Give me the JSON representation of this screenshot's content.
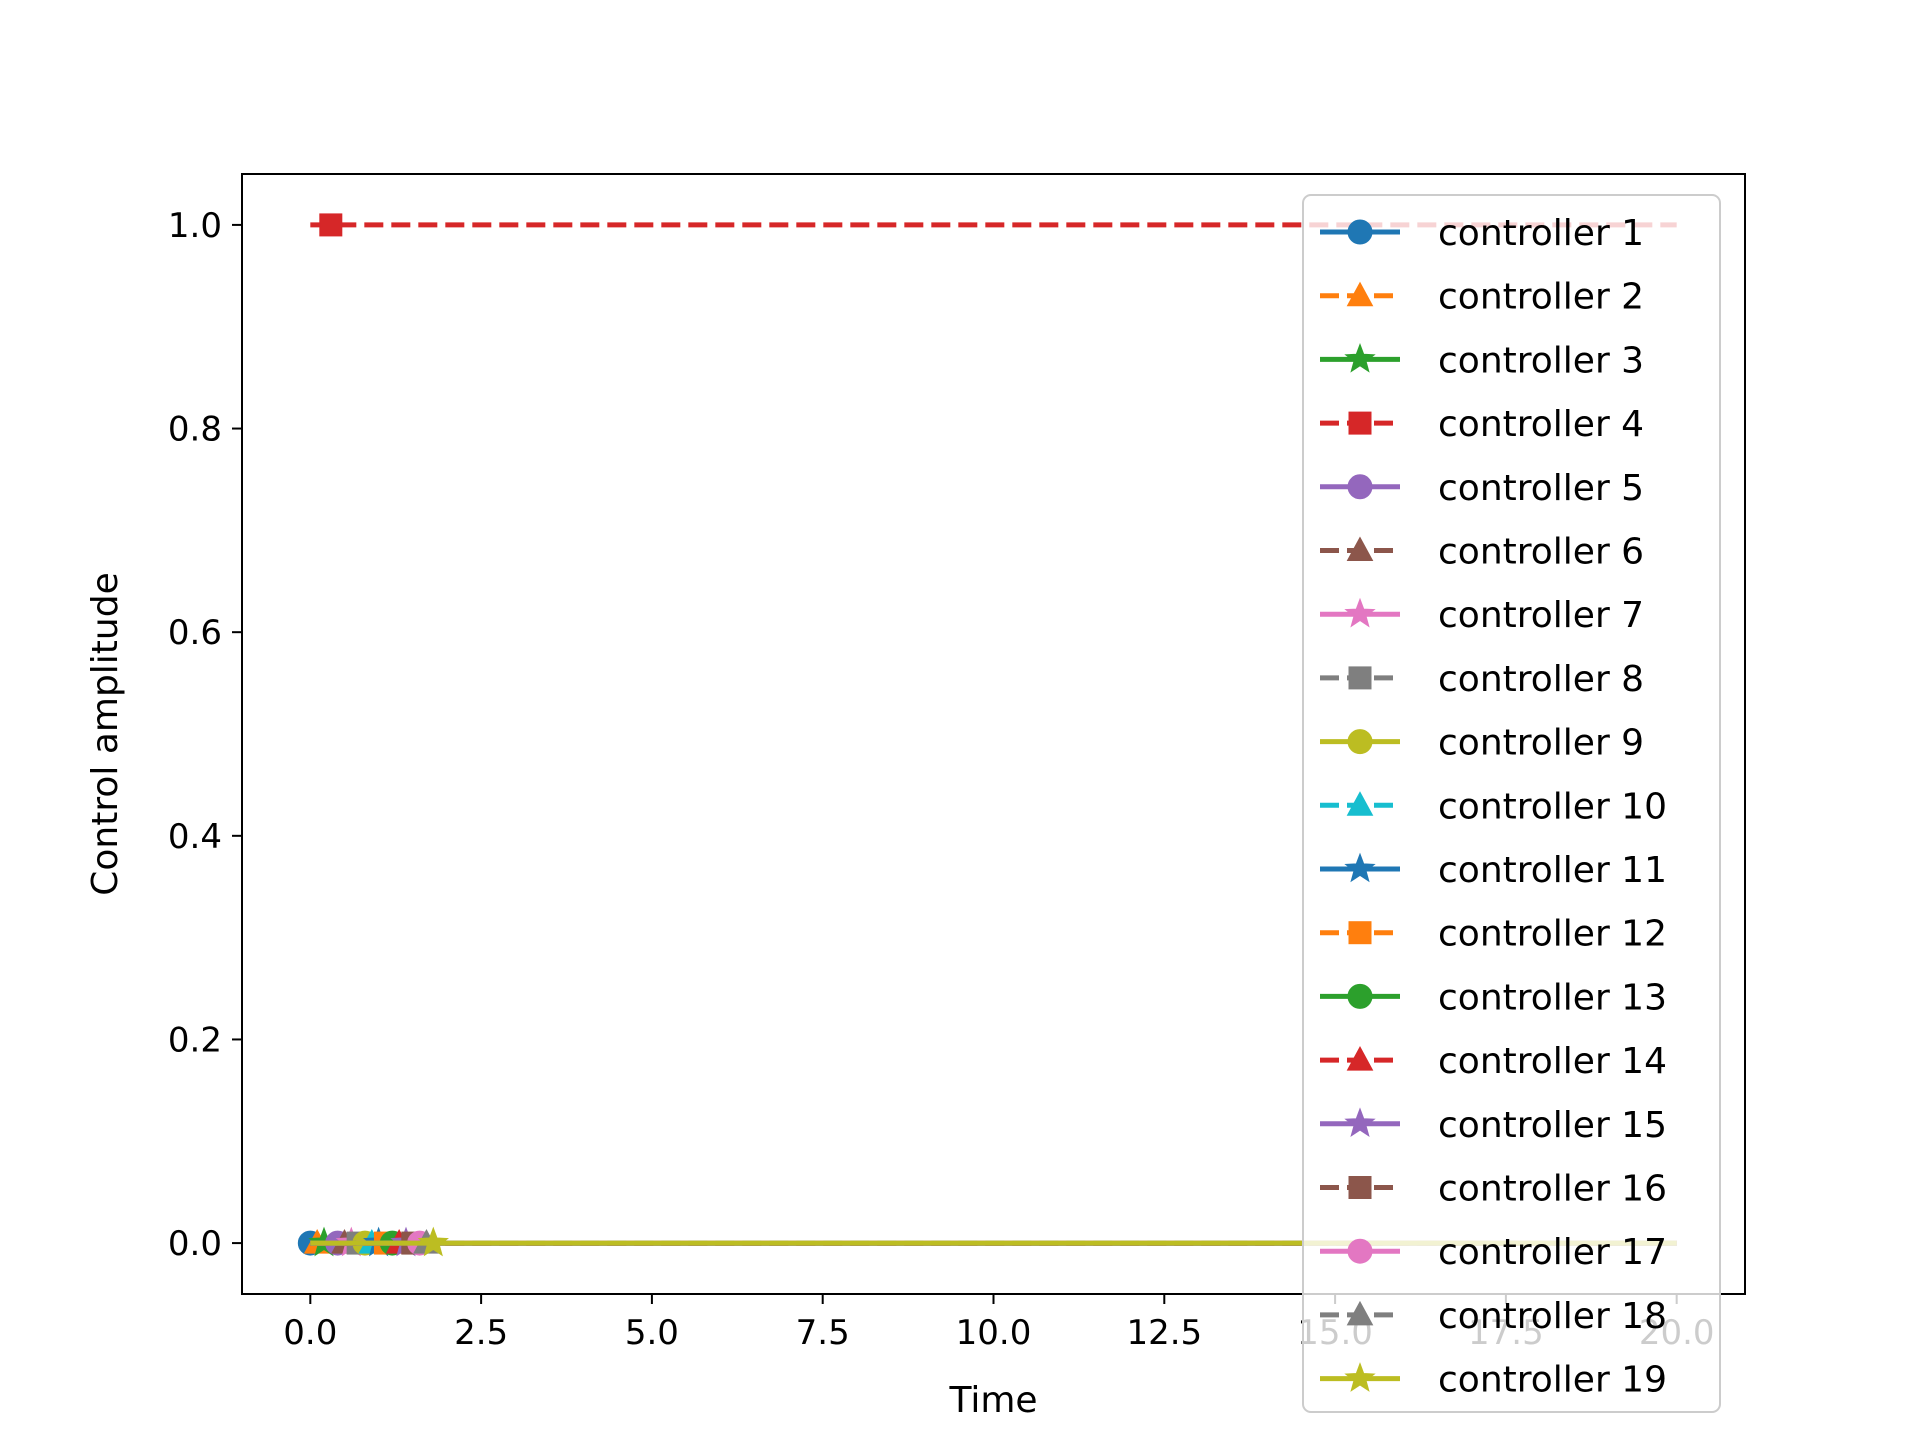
{
  "chart_data": {
    "type": "line",
    "title": "",
    "xlabel": "Time",
    "ylabel": "Control amplitude",
    "xlim": [
      -1.0,
      21.0
    ],
    "ylim": [
      -0.05,
      1.05
    ],
    "xticks": [
      "0.0",
      "2.5",
      "5.0",
      "7.5",
      "10.0",
      "12.5",
      "15.0",
      "17.5",
      "20.0"
    ],
    "yticks": [
      "0.0",
      "0.2",
      "0.4",
      "0.6",
      "0.8",
      "1.0"
    ],
    "grid": false,
    "legend": "upper right",
    "x_start": 0.0,
    "x_end": 20.0,
    "series": [
      {
        "name": "controller 1",
        "value": 0,
        "color": "#1f77b4",
        "marker": "circle",
        "dashed": false,
        "marker_x": [
          0.0
        ]
      },
      {
        "name": "controller 2",
        "value": 0,
        "color": "#ff7f0e",
        "marker": "triangle",
        "dashed": true,
        "marker_x": [
          0.1
        ]
      },
      {
        "name": "controller 3",
        "value": 0,
        "color": "#2ca02c",
        "marker": "star",
        "dashed": false,
        "marker_x": [
          0.2
        ]
      },
      {
        "name": "controller 4",
        "value": 1,
        "color": "#d62728",
        "marker": "square",
        "dashed": true,
        "marker_x": [
          0.3
        ]
      },
      {
        "name": "controller 5",
        "value": 0,
        "color": "#9467bd",
        "marker": "circle",
        "dashed": false,
        "marker_x": [
          0.4
        ]
      },
      {
        "name": "controller 6",
        "value": 0,
        "color": "#8c564b",
        "marker": "triangle",
        "dashed": true,
        "marker_x": [
          0.5
        ]
      },
      {
        "name": "controller 7",
        "value": 0,
        "color": "#e377c2",
        "marker": "star",
        "dashed": false,
        "marker_x": [
          0.6
        ]
      },
      {
        "name": "controller 8",
        "value": 0,
        "color": "#7f7f7f",
        "marker": "square",
        "dashed": true,
        "marker_x": [
          0.7
        ]
      },
      {
        "name": "controller 9",
        "value": 0,
        "color": "#bcbd22",
        "marker": "circle",
        "dashed": false,
        "marker_x": [
          0.8
        ]
      },
      {
        "name": "controller 10",
        "value": 0,
        "color": "#17becf",
        "marker": "triangle",
        "dashed": true,
        "marker_x": [
          0.9
        ]
      },
      {
        "name": "controller 11",
        "value": 0,
        "color": "#1f77b4",
        "marker": "star",
        "dashed": false,
        "marker_x": [
          1.0
        ]
      },
      {
        "name": "controller 12",
        "value": 0,
        "color": "#ff7f0e",
        "marker": "square",
        "dashed": true,
        "marker_x": [
          1.1
        ]
      },
      {
        "name": "controller 13",
        "value": 0,
        "color": "#2ca02c",
        "marker": "circle",
        "dashed": false,
        "marker_x": [
          1.2
        ]
      },
      {
        "name": "controller 14",
        "value": 0,
        "color": "#d62728",
        "marker": "triangle",
        "dashed": true,
        "marker_x": [
          1.3
        ]
      },
      {
        "name": "controller 15",
        "value": 0,
        "color": "#9467bd",
        "marker": "star",
        "dashed": false,
        "marker_x": [
          1.4
        ]
      },
      {
        "name": "controller 16",
        "value": 0,
        "color": "#8c564b",
        "marker": "square",
        "dashed": true,
        "marker_x": [
          1.5
        ]
      },
      {
        "name": "controller 17",
        "value": 0,
        "color": "#e377c2",
        "marker": "circle",
        "dashed": false,
        "marker_x": [
          1.6
        ]
      },
      {
        "name": "controller 18",
        "value": 0,
        "color": "#7f7f7f",
        "marker": "triangle",
        "dashed": true,
        "marker_x": [
          1.7
        ]
      },
      {
        "name": "controller 19",
        "value": 0,
        "color": "#bcbd22",
        "marker": "star",
        "dashed": false,
        "marker_x": [
          1.8
        ]
      }
    ]
  }
}
